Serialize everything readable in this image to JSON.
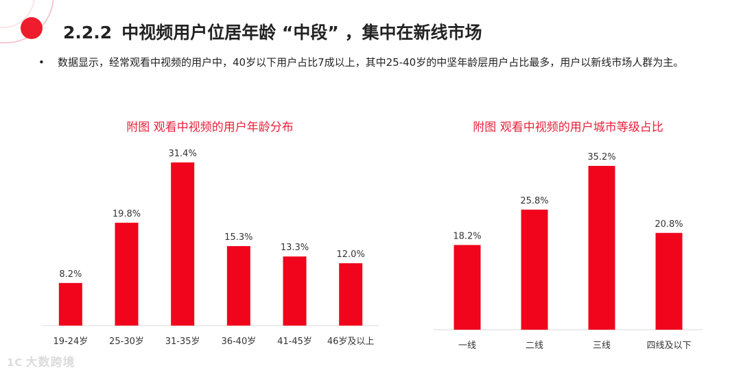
{
  "header": {
    "section_number": "2.2.2",
    "title": "中视频用户位居年龄 “中段” ，集中在新线市场"
  },
  "bullet": {
    "marker": "•",
    "text": "数据显示，经常观看中视频的用户中，40岁以下用户占比7成以上，其中25-40岁的中坚年龄层用户占比最多，用户以新线市场人群为主。"
  },
  "watermark": {
    "mark": "1C",
    "text": "大数跨境"
  },
  "colors": {
    "accent": "#e8203a",
    "bar": "#f0051d",
    "axis": "#d9d9d9"
  },
  "chart_data": [
    {
      "type": "bar",
      "title": "附图 观看中视频的用户年龄分布",
      "categories": [
        "19-24岁",
        "25-30岁",
        "31-35岁",
        "36-40岁",
        "41-45岁",
        "46岁及以上"
      ],
      "values": [
        8.2,
        19.8,
        31.4,
        15.3,
        13.3,
        12.0
      ],
      "value_labels": [
        "8.2%",
        "19.8%",
        "31.4%",
        "15.3%",
        "13.3%",
        "12.0%"
      ],
      "unit": "%",
      "ylim": [
        0,
        31.4
      ],
      "grid": false
    },
    {
      "type": "bar",
      "title": "附图 观看中视频的用户城市等级占比",
      "categories": [
        "一线",
        "二线",
        "三线",
        "四线及以下"
      ],
      "values": [
        18.2,
        25.8,
        35.2,
        20.8
      ],
      "value_labels": [
        "18.2%",
        "25.8%",
        "35.2%",
        "20.8%"
      ],
      "unit": "%",
      "ylim": [
        0,
        35.2
      ],
      "grid": false
    }
  ]
}
